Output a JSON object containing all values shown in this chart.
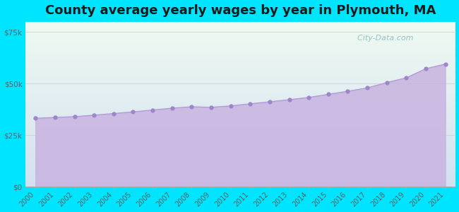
{
  "title": "County average yearly wages by year in Plymouth, MA",
  "years": [
    2000,
    2001,
    2002,
    2003,
    2004,
    2005,
    2006,
    2007,
    2008,
    2009,
    2010,
    2011,
    2012,
    2013,
    2014,
    2015,
    2016,
    2017,
    2018,
    2019,
    2020,
    2021
  ],
  "wages": [
    33200,
    33600,
    34000,
    34700,
    35500,
    36300,
    37200,
    38100,
    38800,
    38500,
    39200,
    40200,
    41200,
    42200,
    43300,
    44800,
    46300,
    47900,
    50500,
    52800,
    57200,
    59500
  ],
  "line_color": "#b39ddb",
  "fill_color_top": "#d4b8e8",
  "fill_color_bottom": "#c8b4e0",
  "marker_color": "#9e86c8",
  "marker_size": 3.5,
  "bg_outer_color": "#00e5ff",
  "bg_plot_top": "#f0faf2",
  "bg_plot_bottom": "#ddeef5",
  "ylim": [
    0,
    80000
  ],
  "yticks": [
    0,
    25000,
    50000,
    75000
  ],
  "ytick_labels": [
    "$0",
    "$25k",
    "$50k",
    "$75k"
  ],
  "title_fontsize": 13,
  "tick_fontsize": 7.5,
  "watermark": "City-Data.com",
  "watermark_icon": "ⓘ"
}
